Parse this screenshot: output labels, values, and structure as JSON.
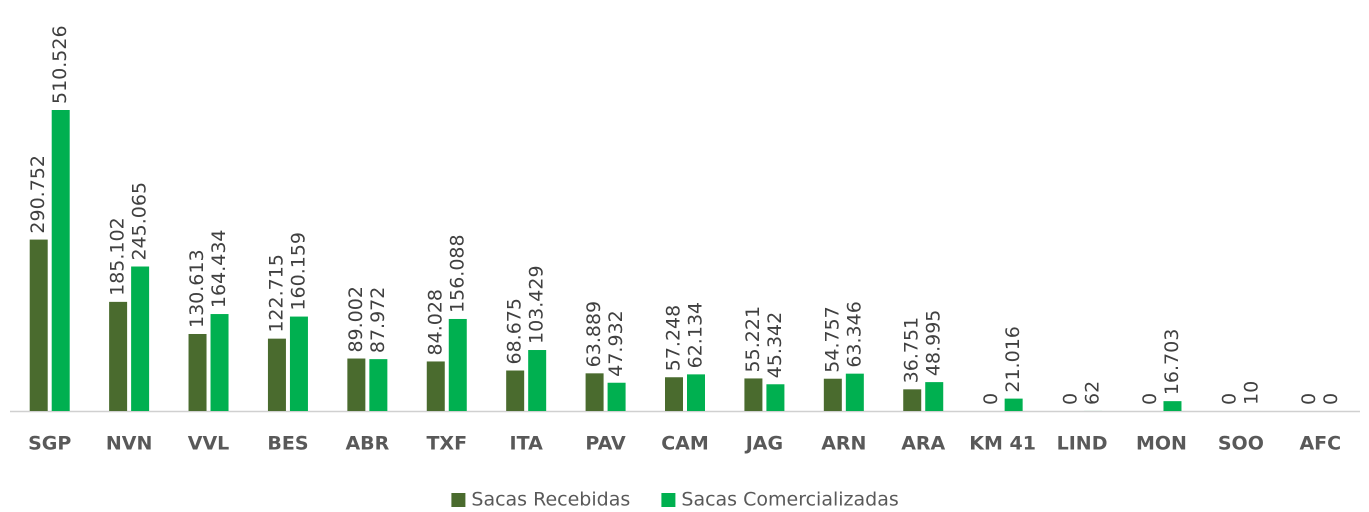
{
  "chart_data": {
    "type": "bar",
    "categories": [
      "SGP",
      "NVN",
      "VVL",
      "BES",
      "ABR",
      "TXF",
      "ITA",
      "PAV",
      "CAM",
      "JAG",
      "ARN",
      "ARA",
      "KM 41",
      "LIND",
      "MON",
      "SOO",
      "AFC"
    ],
    "series": [
      {
        "name": "Sacas Recebidas",
        "color": "#4a6b2e",
        "values": [
          290752,
          185102,
          130613,
          122715,
          89002,
          84028,
          68675,
          63889,
          57248,
          55221,
          54757,
          36751,
          0,
          0,
          0,
          0,
          0
        ],
        "value_labels": [
          "290.752",
          "185.102",
          "130.613",
          "122.715",
          "89.002",
          "84.028",
          "68.675",
          "63.889",
          "57.248",
          "55.221",
          "54.757",
          "36.751",
          "0",
          "0",
          "0",
          "0",
          "0"
        ]
      },
      {
        "name": "Sacas Comercializadas",
        "color": "#00b050",
        "values": [
          510526,
          245065,
          164434,
          160159,
          87972,
          156088,
          103429,
          47932,
          62134,
          45342,
          63346,
          48995,
          21016,
          62,
          16703,
          10,
          0
        ],
        "value_labels": [
          "510.526",
          "245.065",
          "164.434",
          "160.159",
          "87.972",
          "156.088",
          "103.429",
          "47.932",
          "62.134",
          "45.342",
          "63.346",
          "48.995",
          "21.016",
          "62",
          "16.703",
          "10",
          "0"
        ]
      }
    ],
    "legend": "bottom"
  }
}
